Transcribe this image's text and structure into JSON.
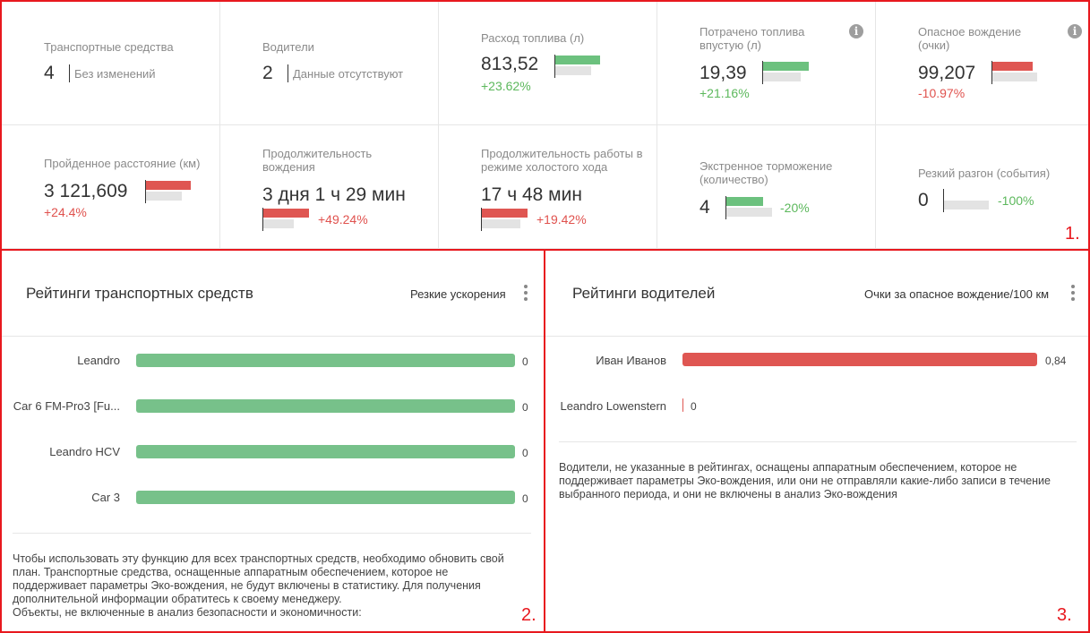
{
  "kpis": {
    "vehicles": {
      "title": "Транспортные средства",
      "value": "4",
      "note": "Без изменений"
    },
    "drivers": {
      "title": "Водители",
      "value": "2",
      "note": "Данные отсутствуют"
    },
    "fuel": {
      "title": "Расход топлива (л)",
      "value": "813,52",
      "change": "+23.62%"
    },
    "idle_fuel": {
      "title": "Потрачено топлива впустую (л)",
      "value": "19,39",
      "change": "+21.16%"
    },
    "dangerous": {
      "title": "Опасное вождение (очки)",
      "value": "99,207",
      "change": "-10.97%"
    },
    "distance": {
      "title": "Пройденное расстояние (км)",
      "value": "3 121,609",
      "change": "+24.4%"
    },
    "duration": {
      "title": "Продолжительность вождения",
      "value": "3 дня 1 ч 29 мин",
      "change": "+49.24%"
    },
    "idle_time": {
      "title": "Продолжительность работы в режиме холостого хода",
      "value": "17 ч 48 мин",
      "change": "+19.42%"
    },
    "braking": {
      "title": "Экстренное торможение (количество)",
      "value": "4",
      "change": "-20%"
    },
    "accel": {
      "title": "Резкий разгон (события)",
      "value": "0",
      "change": "-100%"
    }
  },
  "icons": {
    "info": "info-icon",
    "menu": "kebab-menu-icon"
  },
  "colors": {
    "accent_red": "#e8181e",
    "positive": "#5cb85c",
    "negative": "#e0524e",
    "bar_green": "#77c18a",
    "bar_red": "#df5652"
  },
  "annotations": {
    "label1": "1.",
    "label2": "2.",
    "label3": "3."
  },
  "vehicle_ratings": {
    "title": "Рейтинги транспортных средств",
    "metric": "Резкие ускорения",
    "rows": [
      {
        "name": "Leandro",
        "value": "0"
      },
      {
        "name": "Car 6 FM-Pro3 [Fu...",
        "value": "0"
      },
      {
        "name": "Leandro HCV",
        "value": "0"
      },
      {
        "name": "Car 3",
        "value": "0"
      }
    ],
    "note": "Чтобы использовать эту функцию для всех транспортных средств, необходимо обновить свой план. Транспортные средства, оснащенные аппаратным обеспечением, которое не поддерживает параметры Эко-вождения, не будут включены в статистику. Для получения дополнительной информации обратитесь к своему менеджеру.",
    "note2": "Объекты, не включенные в анализ безопасности и экономичности:"
  },
  "driver_ratings": {
    "title": "Рейтинги водителей",
    "metric": "Очки за опасное вождение/100 км",
    "rows": [
      {
        "name": "Иван Иванов",
        "value": "0,84",
        "fraction": 1.0
      },
      {
        "name": "Leandro Lowenstern",
        "value": "0",
        "fraction": 0.0
      }
    ],
    "note": "Водители, не указанные в рейтингах, оснащены аппаратным обеспечением, которое не поддерживает параметры Эко-вождения, или они не отправляли какие-либо записи в течение выбранного периода, и они не включены в анализ Эко-вождения"
  }
}
